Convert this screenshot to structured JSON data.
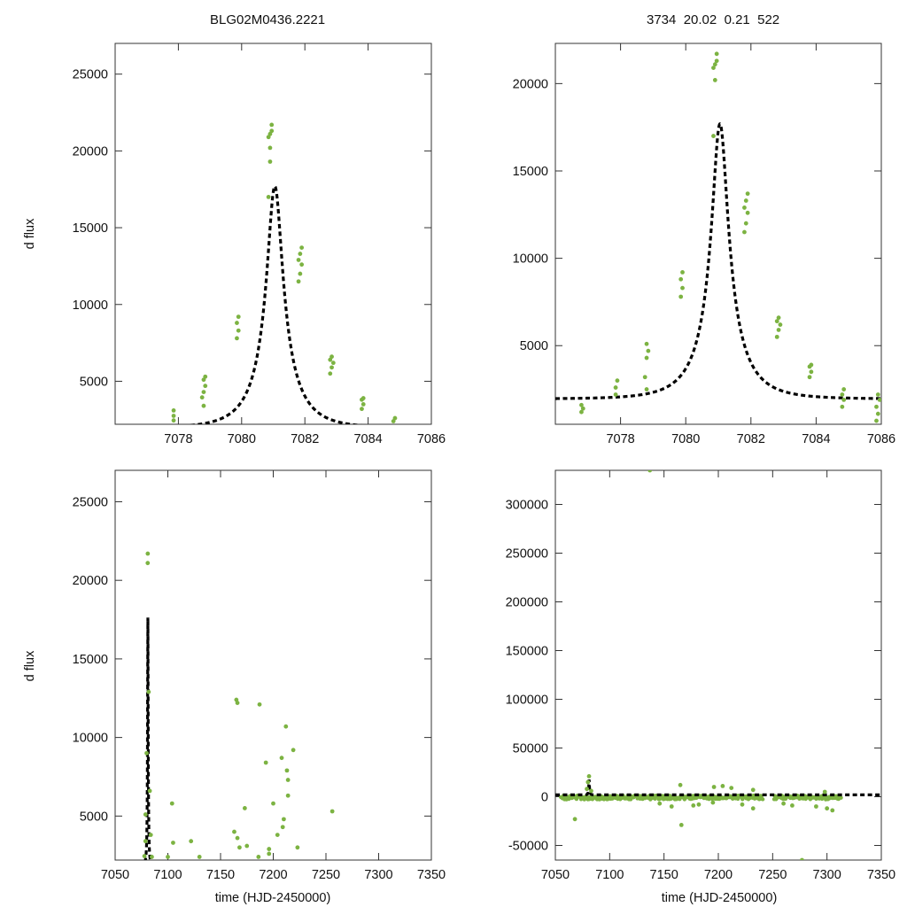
{
  "titles": {
    "left": "BLG02M0436.2221",
    "right": "3734  20.02  0.21  522"
  },
  "axis_labels": {
    "ylabel": "d flux",
    "xlabel": "time (HJD-2450000)"
  },
  "colors": {
    "points": "#7cb342",
    "model": "#000000",
    "frame": "#333333"
  },
  "chart_data": [
    {
      "type": "scatter",
      "title": "BLG02M0436.2221",
      "xlabel": "",
      "ylabel": "d flux",
      "xlim": [
        7076,
        7086
      ],
      "ylim": [
        2200,
        27000
      ],
      "xticks": [
        7078,
        7080,
        7082,
        7084,
        7086
      ],
      "yticks": [
        5000,
        10000,
        15000,
        20000,
        25000
      ],
      "model": {
        "t0": 7081.05,
        "u0": 0.21,
        "tE": 1.2,
        "base": 1950,
        "amp": 4100,
        "style": "dashed"
      },
      "points": [
        [
          7077.85,
          2450
        ],
        [
          7077.85,
          2750
        ],
        [
          7077.85,
          3100
        ],
        [
          7078.8,
          3400
        ],
        [
          7078.75,
          3950
        ],
        [
          7078.8,
          4300
        ],
        [
          7078.85,
          4700
        ],
        [
          7078.8,
          5100
        ],
        [
          7078.85,
          5300
        ],
        [
          7079.85,
          7800
        ],
        [
          7079.9,
          8300
        ],
        [
          7079.85,
          8800
        ],
        [
          7079.9,
          9200
        ],
        [
          7080.85,
          17000
        ],
        [
          7080.9,
          19300
        ],
        [
          7080.9,
          20200
        ],
        [
          7080.85,
          20900
        ],
        [
          7080.9,
          21100
        ],
        [
          7080.95,
          21300
        ],
        [
          7080.95,
          21700
        ],
        [
          7081.8,
          11500
        ],
        [
          7081.85,
          12000
        ],
        [
          7081.9,
          12600
        ],
        [
          7081.8,
          12900
        ],
        [
          7081.85,
          13300
        ],
        [
          7081.9,
          13700
        ],
        [
          7082.8,
          5500
        ],
        [
          7082.85,
          5900
        ],
        [
          7082.9,
          6200
        ],
        [
          7082.8,
          6400
        ],
        [
          7082.85,
          6600
        ],
        [
          7083.8,
          3200
        ],
        [
          7083.85,
          3500
        ],
        [
          7083.8,
          3800
        ],
        [
          7083.85,
          3900
        ],
        [
          7084.8,
          2400
        ],
        [
          7084.85,
          2600
        ]
      ]
    },
    {
      "type": "scatter",
      "title": "3734  20.02  0.21  522",
      "xlabel": "",
      "ylabel": "",
      "xlim": [
        7076,
        7086
      ],
      "ylim": [
        500,
        22300
      ],
      "xticks": [
        7078,
        7080,
        7082,
        7084,
        7086
      ],
      "yticks": [
        5000,
        10000,
        15000,
        20000
      ],
      "model": {
        "t0": 7081.05,
        "u0": 0.21,
        "tE": 1.2,
        "base": 1950,
        "amp": 4100,
        "style": "dashed"
      },
      "points": [
        [
          7076.8,
          1200
        ],
        [
          7076.85,
          1400
        ],
        [
          7076.8,
          1600
        ],
        [
          7077.85,
          2200
        ],
        [
          7077.85,
          2600
        ],
        [
          7077.9,
          3000
        ],
        [
          7078.8,
          2500
        ],
        [
          7078.75,
          3200
        ],
        [
          7078.8,
          4300
        ],
        [
          7078.85,
          4700
        ],
        [
          7078.8,
          5100
        ],
        [
          7079.85,
          7800
        ],
        [
          7079.9,
          8300
        ],
        [
          7079.85,
          8800
        ],
        [
          7079.9,
          9200
        ],
        [
          7080.85,
          17000
        ],
        [
          7080.9,
          20200
        ],
        [
          7080.85,
          20900
        ],
        [
          7080.9,
          21100
        ],
        [
          7080.95,
          21300
        ],
        [
          7080.95,
          21700
        ],
        [
          7081.8,
          11500
        ],
        [
          7081.85,
          12000
        ],
        [
          7081.9,
          12600
        ],
        [
          7081.8,
          12900
        ],
        [
          7081.85,
          13300
        ],
        [
          7081.9,
          13700
        ],
        [
          7082.8,
          5500
        ],
        [
          7082.85,
          5900
        ],
        [
          7082.9,
          6200
        ],
        [
          7082.8,
          6400
        ],
        [
          7082.85,
          6600
        ],
        [
          7083.8,
          3200
        ],
        [
          7083.85,
          3500
        ],
        [
          7083.8,
          3800
        ],
        [
          7083.85,
          3900
        ],
        [
          7084.8,
          1500
        ],
        [
          7084.85,
          1900
        ],
        [
          7084.8,
          2200
        ],
        [
          7084.85,
          2500
        ],
        [
          7085.85,
          700
        ],
        [
          7085.9,
          1100
        ],
        [
          7085.85,
          1500
        ],
        [
          7085.95,
          1900
        ],
        [
          7085.9,
          2200
        ]
      ]
    },
    {
      "type": "scatter",
      "title": "",
      "xlabel": "time (HJD-2450000)",
      "ylabel": "d flux",
      "xlim": [
        7050,
        7350
      ],
      "ylim": [
        2200,
        27000
      ],
      "xticks": [
        7050,
        7100,
        7150,
        7200,
        7250,
        7300,
        7350
      ],
      "yticks": [
        5000,
        10000,
        15000,
        20000,
        25000
      ],
      "model": {
        "t0": 7081.05,
        "u0": 0.21,
        "tE": 1.2,
        "base": 1950,
        "amp": 4100,
        "style": "dashed"
      },
      "points": [
        [
          7077.8,
          2450
        ],
        [
          7078.8,
          3400
        ],
        [
          7078.8,
          5100
        ],
        [
          7079.85,
          9000
        ],
        [
          7080.9,
          21100
        ],
        [
          7080.95,
          21700
        ],
        [
          7081.8,
          12900
        ],
        [
          7082.85,
          6600
        ],
        [
          7083.8,
          3800
        ],
        [
          7084.8,
          2400
        ],
        [
          7100,
          2400
        ],
        [
          7104,
          5800
        ],
        [
          7105,
          3300
        ],
        [
          7122,
          3400
        ],
        [
          7130,
          2400
        ],
        [
          7165,
          12400
        ],
        [
          7166,
          12200
        ],
        [
          7163,
          4000
        ],
        [
          7166,
          3600
        ],
        [
          7168,
          3000
        ],
        [
          7173,
          5500
        ],
        [
          7175,
          3100
        ],
        [
          7186,
          2400
        ],
        [
          7187,
          12100
        ],
        [
          7193,
          8400
        ],
        [
          7196,
          2900
        ],
        [
          7196,
          2600
        ],
        [
          7200,
          5800
        ],
        [
          7204,
          3800
        ],
        [
          7208,
          8700
        ],
        [
          7209,
          4300
        ],
        [
          7210,
          4800
        ],
        [
          7212,
          10700
        ],
        [
          7213,
          7900
        ],
        [
          7214,
          7300
        ],
        [
          7214,
          6300
        ],
        [
          7219,
          9200
        ],
        [
          7223,
          3000
        ],
        [
          7256,
          5300
        ]
      ]
    },
    {
      "type": "scatter",
      "title": "",
      "xlabel": "time (HJD-2450000)",
      "ylabel": "",
      "xlim": [
        7050,
        7350
      ],
      "ylim": [
        -65000,
        335000
      ],
      "xticks": [
        7050,
        7100,
        7150,
        7200,
        7250,
        7300,
        7350
      ],
      "yticks": [
        -50000,
        0,
        50000,
        100000,
        150000,
        200000,
        250000,
        300000
      ],
      "model": {
        "t0": 7081.05,
        "u0": 0.21,
        "tE": 1.2,
        "base": 1950,
        "amp": 4100,
        "style": "dashed"
      },
      "points": [
        [
          7137,
          335000
        ],
        [
          7068,
          -23000
        ],
        [
          7166,
          -29000
        ],
        [
          7277,
          -65000
        ],
        [
          7081,
          21000
        ],
        [
          7080,
          15000
        ],
        [
          7079,
          8000
        ],
        [
          7083,
          6000
        ],
        [
          7165,
          12000
        ],
        [
          7196,
          10000
        ],
        [
          7212,
          9000
        ],
        [
          7232,
          7000
        ],
        [
          7290,
          -10000
        ],
        [
          7305,
          -14000
        ],
        [
          7300,
          -12000
        ],
        [
          7268,
          -9000
        ],
        [
          7182,
          -8000
        ],
        [
          7232,
          -12000
        ],
        [
          7260,
          -7000
        ],
        [
          7222,
          -8000
        ],
        [
          7195,
          -6000
        ],
        [
          7157,
          -10000
        ],
        [
          7146,
          -7000
        ],
        [
          7177,
          -9000
        ],
        [
          7298,
          5000
        ],
        [
          7204,
          11000
        ]
      ],
      "dense_band": {
        "x_ranges": [
          [
            7055,
            7241
          ],
          [
            7251,
            7313
          ]
        ],
        "y_spread": 4000,
        "note": "many points near 0"
      }
    }
  ]
}
